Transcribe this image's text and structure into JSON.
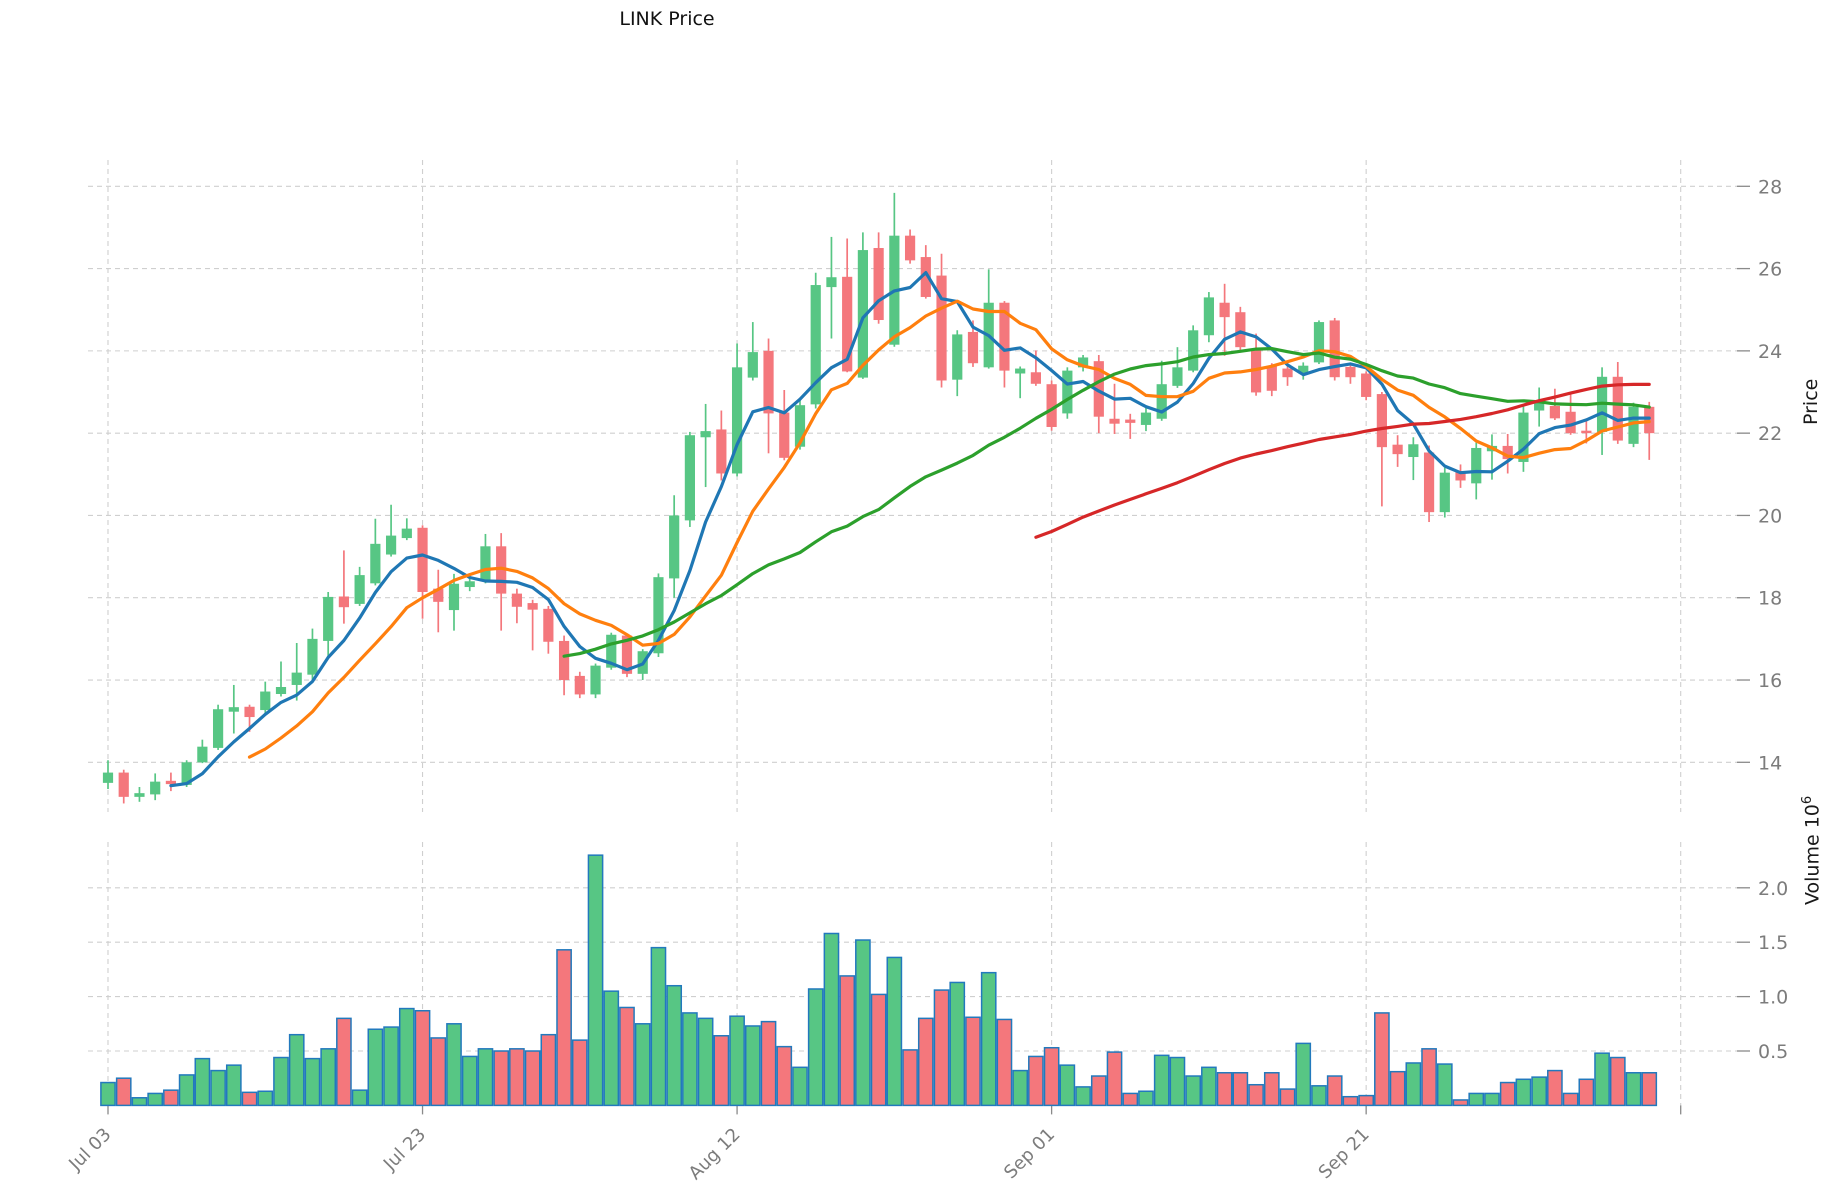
{
  "title": "LINK Price",
  "axes": {
    "price_label": "Price",
    "volume_label": "Volume  10",
    "volume_exp": "6",
    "price_ticks": [
      28,
      26,
      24,
      22,
      20,
      18,
      16,
      14
    ],
    "volume_ticks": [
      "2.0",
      "1.5",
      "1.0",
      "0.5"
    ],
    "x_ticks": [
      {
        "day": 0,
        "label": "Jul 03"
      },
      {
        "day": 20,
        "label": "Jul 23"
      },
      {
        "day": 40,
        "label": "Aug 12"
      },
      {
        "day": 60,
        "label": "Sep 01"
      },
      {
        "day": 80,
        "label": "Sep 21"
      },
      {
        "day": 100,
        "label": ""
      }
    ]
  },
  "colors": {
    "up": "#57c684",
    "down": "#f4777c",
    "volume_edge": "#2279bd",
    "grid": "#cfcfcf",
    "tick_text": "#7c7c7c",
    "sma5": "#1f77b4",
    "sma10": "#ff7f0e",
    "sma30": "#2ca02c",
    "sma60": "#d62728"
  },
  "chart_data": {
    "type": "candlestick+volume",
    "title": "LINK Price",
    "ylabel": "Price",
    "ylabel2": "Volume 10^6",
    "price_ylim": [
      13,
      28
    ],
    "volume_unit": 1000000,
    "legend_position": "none",
    "grid": true,
    "moving_averages": [
      {
        "name": "SMA5",
        "window": 5,
        "color_key": "sma5"
      },
      {
        "name": "SMA10",
        "window": 10,
        "color_key": "sma10"
      },
      {
        "name": "SMA30",
        "window": 30,
        "color_key": "sma30"
      },
      {
        "name": "SMA60",
        "window": 60,
        "color_key": "sma60"
      }
    ],
    "dates": [
      "Jul 03",
      "Jul 04",
      "Jul 05",
      "Jul 06",
      "Jul 07",
      "Jul 08",
      "Jul 09",
      "Jul 10",
      "Jul 11",
      "Jul 12",
      "Jul 13",
      "Jul 14",
      "Jul 15",
      "Jul 16",
      "Jul 17",
      "Jul 18",
      "Jul 19",
      "Jul 20",
      "Jul 21",
      "Jul 22",
      "Jul 23",
      "Jul 24",
      "Jul 25",
      "Jul 26",
      "Jul 27",
      "Jul 28",
      "Jul 29",
      "Jul 30",
      "Jul 31",
      "Aug 01",
      "Aug 02",
      "Aug 03",
      "Aug 04",
      "Aug 05",
      "Aug 06",
      "Aug 07",
      "Aug 08",
      "Aug 09",
      "Aug 10",
      "Aug 11",
      "Aug 12",
      "Aug 13",
      "Aug 14",
      "Aug 15",
      "Aug 16",
      "Aug 17",
      "Aug 18",
      "Aug 19",
      "Aug 20",
      "Aug 21",
      "Aug 22",
      "Aug 23",
      "Aug 24",
      "Aug 25",
      "Aug 26",
      "Aug 27",
      "Aug 28",
      "Aug 29",
      "Aug 30",
      "Aug 31",
      "Sep 01",
      "Sep 02",
      "Sep 03",
      "Sep 04",
      "Sep 05",
      "Sep 06",
      "Sep 07",
      "Sep 08",
      "Sep 09",
      "Sep 10",
      "Sep 11",
      "Sep 12",
      "Sep 13",
      "Sep 14",
      "Sep 15",
      "Sep 16",
      "Sep 17",
      "Sep 18",
      "Sep 19",
      "Sep 20",
      "Sep 21",
      "Sep 22",
      "Sep 23",
      "Sep 24",
      "Sep 25",
      "Sep 26",
      "Sep 27",
      "Sep 28",
      "Sep 29",
      "Sep 30",
      "Oct 01",
      "Oct 02",
      "Oct 03",
      "Oct 04",
      "Oct 05",
      "Oct 06",
      "Oct 07",
      "Oct 08",
      "Oct 09"
    ],
    "ohlc": [
      [
        13.5,
        14.05,
        13.35,
        13.75
      ],
      [
        13.75,
        13.82,
        13.0,
        13.16
      ],
      [
        13.16,
        13.4,
        13.04,
        13.25
      ],
      [
        13.22,
        13.73,
        13.08,
        13.53
      ],
      [
        13.55,
        13.75,
        13.3,
        13.47
      ],
      [
        13.45,
        14.05,
        13.4,
        14.0
      ],
      [
        14.0,
        14.55,
        13.98,
        14.38
      ],
      [
        14.35,
        15.4,
        14.3,
        15.29
      ],
      [
        15.23,
        15.88,
        14.7,
        15.34
      ],
      [
        15.35,
        15.4,
        14.74,
        15.1
      ],
      [
        15.27,
        15.96,
        15.2,
        15.72
      ],
      [
        15.66,
        16.45,
        15.6,
        15.83
      ],
      [
        15.88,
        16.9,
        15.5,
        16.18
      ],
      [
        16.13,
        17.25,
        16.0,
        17.0
      ],
      [
        16.95,
        18.14,
        16.56,
        18.02
      ],
      [
        18.03,
        19.15,
        17.37,
        17.77
      ],
      [
        17.85,
        18.75,
        17.8,
        18.55
      ],
      [
        18.35,
        19.92,
        18.3,
        19.31
      ],
      [
        19.05,
        20.26,
        19.0,
        19.51
      ],
      [
        19.45,
        19.93,
        19.4,
        19.68
      ],
      [
        19.7,
        19.76,
        17.49,
        18.14
      ],
      [
        18.22,
        18.68,
        17.16,
        17.9
      ],
      [
        17.7,
        18.58,
        17.2,
        18.34
      ],
      [
        18.26,
        18.54,
        18.16,
        18.4
      ],
      [
        18.4,
        19.55,
        18.35,
        19.25
      ],
      [
        19.25,
        19.57,
        17.2,
        18.1
      ],
      [
        18.1,
        18.22,
        17.38,
        17.78
      ],
      [
        17.87,
        17.95,
        16.72,
        17.71
      ],
      [
        17.73,
        17.8,
        16.64,
        16.93
      ],
      [
        16.95,
        17.08,
        15.63,
        16.0
      ],
      [
        16.1,
        16.2,
        15.56,
        15.65
      ],
      [
        15.65,
        16.4,
        15.56,
        16.35
      ],
      [
        16.3,
        17.15,
        16.25,
        17.1
      ],
      [
        17.08,
        17.1,
        16.07,
        16.15
      ],
      [
        16.15,
        16.75,
        16.0,
        16.7
      ],
      [
        16.65,
        18.59,
        16.56,
        18.5
      ],
      [
        18.47,
        20.49,
        18.0,
        20.0
      ],
      [
        19.88,
        22.03,
        19.72,
        21.95
      ],
      [
        21.9,
        22.71,
        20.69,
        22.05
      ],
      [
        22.09,
        22.55,
        20.85,
        21.02
      ],
      [
        21.02,
        24.18,
        20.95,
        23.6
      ],
      [
        23.35,
        24.7,
        23.28,
        23.97
      ],
      [
        24.0,
        24.3,
        21.51,
        22.48
      ],
      [
        22.5,
        23.05,
        21.34,
        21.4
      ],
      [
        21.67,
        22.8,
        21.6,
        22.68
      ],
      [
        22.7,
        25.9,
        22.6,
        25.6
      ],
      [
        25.55,
        26.77,
        24.3,
        25.79
      ],
      [
        25.8,
        26.73,
        23.48,
        23.5
      ],
      [
        23.35,
        26.88,
        23.32,
        26.45
      ],
      [
        26.5,
        26.88,
        24.66,
        24.75
      ],
      [
        24.15,
        27.84,
        24.1,
        26.8
      ],
      [
        26.8,
        26.95,
        26.12,
        26.2
      ],
      [
        26.28,
        26.57,
        25.27,
        25.31
      ],
      [
        25.83,
        26.36,
        23.11,
        23.28
      ],
      [
        23.3,
        24.5,
        22.9,
        24.4
      ],
      [
        24.46,
        24.74,
        23.61,
        23.7
      ],
      [
        23.6,
        25.98,
        23.57,
        25.17
      ],
      [
        25.17,
        25.21,
        23.11,
        23.52
      ],
      [
        23.45,
        23.62,
        22.85,
        23.57
      ],
      [
        23.48,
        24.01,
        23.15,
        23.2
      ],
      [
        23.19,
        23.28,
        22.06,
        22.15
      ],
      [
        22.48,
        23.6,
        22.35,
        23.52
      ],
      [
        23.6,
        23.9,
        23.5,
        23.84
      ],
      [
        23.75,
        23.9,
        22.0,
        22.4
      ],
      [
        22.35,
        23.2,
        21.98,
        22.23
      ],
      [
        22.33,
        22.47,
        21.86,
        22.25
      ],
      [
        22.2,
        22.62,
        22.05,
        22.5
      ],
      [
        22.35,
        23.76,
        22.3,
        23.19
      ],
      [
        23.15,
        24.09,
        23.1,
        23.6
      ],
      [
        23.52,
        24.62,
        23.48,
        24.5
      ],
      [
        24.38,
        25.43,
        24.21,
        25.3
      ],
      [
        25.17,
        25.63,
        23.88,
        24.82
      ],
      [
        24.94,
        25.07,
        23.97,
        24.09
      ],
      [
        24.01,
        24.42,
        22.91,
        22.99
      ],
      [
        23.64,
        23.7,
        22.9,
        23.03
      ],
      [
        23.57,
        23.62,
        23.15,
        23.36
      ],
      [
        23.45,
        23.72,
        23.3,
        23.64
      ],
      [
        23.72,
        24.74,
        23.68,
        24.7
      ],
      [
        24.74,
        24.8,
        23.28,
        23.36
      ],
      [
        23.61,
        23.7,
        23.2,
        23.36
      ],
      [
        23.45,
        23.5,
        22.8,
        22.88
      ],
      [
        22.95,
        23.0,
        20.22,
        21.66
      ],
      [
        21.72,
        21.95,
        21.18,
        21.49
      ],
      [
        21.42,
        21.9,
        20.86,
        21.73
      ],
      [
        21.53,
        21.7,
        19.84,
        20.08
      ],
      [
        20.08,
        21.16,
        19.95,
        21.04
      ],
      [
        21.08,
        21.24,
        20.67,
        20.85
      ],
      [
        20.78,
        21.77,
        20.39,
        21.64
      ],
      [
        21.56,
        21.97,
        20.87,
        21.69
      ],
      [
        21.69,
        21.98,
        21.02,
        21.37
      ],
      [
        21.3,
        22.66,
        21.06,
        22.5
      ],
      [
        22.55,
        23.11,
        22.16,
        22.75
      ],
      [
        22.66,
        23.08,
        22.32,
        22.36
      ],
      [
        22.52,
        22.97,
        21.96,
        22.0
      ],
      [
        22.06,
        22.32,
        21.75,
        22.0
      ],
      [
        22.03,
        23.6,
        21.47,
        23.37
      ],
      [
        23.37,
        23.73,
        21.74,
        21.82
      ],
      [
        21.74,
        22.74,
        21.66,
        22.64
      ],
      [
        22.64,
        22.76,
        21.35,
        22.0
      ]
    ],
    "volume": [
      0.21,
      0.25,
      0.07,
      0.11,
      0.14,
      0.28,
      0.43,
      0.32,
      0.37,
      0.12,
      0.13,
      0.44,
      0.65,
      0.43,
      0.52,
      0.8,
      0.14,
      0.7,
      0.72,
      0.89,
      0.87,
      0.62,
      0.75,
      0.45,
      0.52,
      0.5,
      0.52,
      0.5,
      0.65,
      1.43,
      0.6,
      2.3,
      1.05,
      0.9,
      0.75,
      1.45,
      1.1,
      0.85,
      0.8,
      0.64,
      0.82,
      0.73,
      0.77,
      0.54,
      0.35,
      1.07,
      1.58,
      1.19,
      1.52,
      1.02,
      1.36,
      0.51,
      0.8,
      1.06,
      1.13,
      0.81,
      1.22,
      0.79,
      0.32,
      0.45,
      0.53,
      0.37,
      0.17,
      0.27,
      0.49,
      0.11,
      0.13,
      0.46,
      0.44,
      0.27,
      0.35,
      0.3,
      0.3,
      0.19,
      0.3,
      0.15,
      0.57,
      0.18,
      0.27,
      0.08,
      0.09,
      0.85,
      0.31,
      0.39,
      0.52,
      0.38,
      0.05,
      0.11,
      0.11,
      0.21,
      0.24,
      0.26,
      0.32,
      0.11,
      0.24,
      0.48,
      0.44,
      0.3,
      0.3
    ]
  }
}
